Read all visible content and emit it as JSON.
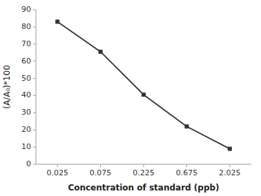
{
  "chart_data": {
    "type": "line",
    "x_label": "Concentration of standard (ppb)",
    "y_label": "(A/A₀)*100",
    "categories": [
      "0.025",
      "0.075",
      "0.225",
      "0.675",
      "2.025"
    ],
    "values": [
      83,
      65.5,
      40.5,
      22,
      9
    ],
    "color": "#333333",
    "marker": "square",
    "ylim": [
      0,
      90
    ],
    "yticks": [
      0,
      10,
      20,
      30,
      40,
      50,
      60,
      70,
      80,
      90
    ],
    "grid": false
  }
}
